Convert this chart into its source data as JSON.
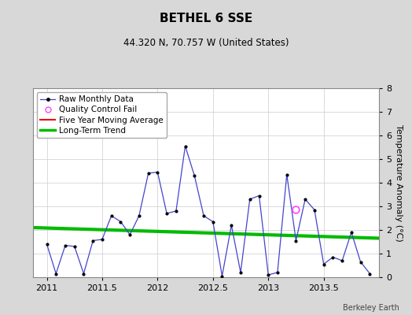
{
  "title": "BETHEL 6 SSE",
  "subtitle": "44.320 N, 70.757 W (United States)",
  "ylabel": "Temperature Anomaly (°C)",
  "attribution": "Berkeley Earth",
  "xlim": [
    2010.875,
    2014.0
  ],
  "ylim": [
    0,
    8
  ],
  "yticks": [
    0,
    1,
    2,
    3,
    4,
    5,
    6,
    7,
    8
  ],
  "xticks": [
    2011,
    2011.5,
    2012,
    2012.5,
    2013,
    2013.5
  ],
  "xticklabels": [
    "2011",
    "2011.5",
    "2012",
    "2012.5",
    "2013",
    "2013.5"
  ],
  "raw_x": [
    2011.0,
    2011.083,
    2011.167,
    2011.25,
    2011.333,
    2011.417,
    2011.5,
    2011.583,
    2011.667,
    2011.75,
    2011.833,
    2011.917,
    2012.0,
    2012.083,
    2012.167,
    2012.25,
    2012.333,
    2012.417,
    2012.5,
    2012.583,
    2012.667,
    2012.75,
    2012.833,
    2012.917,
    2013.0,
    2013.083,
    2013.167,
    2013.25,
    2013.333,
    2013.417,
    2013.5,
    2013.583,
    2013.667,
    2013.75,
    2013.833,
    2013.917
  ],
  "raw_y": [
    1.4,
    0.15,
    1.35,
    1.3,
    0.15,
    1.55,
    1.6,
    2.6,
    2.35,
    1.8,
    2.6,
    4.4,
    4.45,
    2.7,
    2.8,
    5.55,
    4.3,
    2.6,
    2.35,
    0.05,
    2.2,
    0.2,
    3.3,
    3.45,
    0.1,
    0.2,
    4.35,
    1.55,
    3.3,
    2.85,
    0.55,
    0.85,
    0.7,
    1.9,
    0.65,
    0.15
  ],
  "qc_fail_x": [
    2013.25
  ],
  "qc_fail_y": [
    2.85
  ],
  "trend_x": [
    2010.875,
    2014.0
  ],
  "trend_y": [
    2.1,
    1.65
  ],
  "raw_line_color": "#4444cc",
  "raw_marker_color": "#000000",
  "trend_color": "#00bb00",
  "ma_color": "#ee0000",
  "qc_color": "#ff44ff",
  "background_color": "#d8d8d8",
  "plot_bg_color": "#ffffff",
  "grid_color": "#cccccc",
  "title_fontsize": 11,
  "subtitle_fontsize": 8.5,
  "label_fontsize": 8,
  "tick_fontsize": 8,
  "legend_fontsize": 7.5
}
